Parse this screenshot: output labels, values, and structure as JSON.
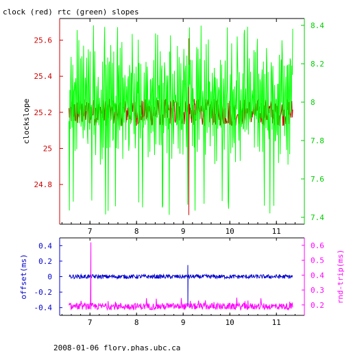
{
  "title": "clock (red) rtc (green) slopes",
  "footer": "2008-01-06 flory.phas.ubc.ca",
  "chart_data": [
    {
      "type": "line",
      "panel": "top",
      "xlim": [
        6.35,
        11.6
      ],
      "x_ticks": [
        "7",
        "8",
        "9",
        "10",
        "11"
      ],
      "y_left": {
        "label": "clockslope",
        "ylim": [
          24.58,
          25.72
        ],
        "ticks": [
          "24.8",
          "25",
          "25.2",
          "25.4",
          "25.6"
        ],
        "color": "#cc0000"
      },
      "y_right": {
        "label": "",
        "ylim": [
          7.37,
          6.44
        ],
        "ticks": [
          "7.4",
          "7.6",
          "7.8",
          "8",
          "8.2",
          "8.4"
        ],
        "color": "#00cc00"
      },
      "series": [
        {
          "name": "clock",
          "color": "#cc0000",
          "axis": "left",
          "x_range": [
            6.55,
            11.35
          ],
          "mean": 25.2,
          "typical_range": [
            25.14,
            25.33
          ],
          "spike": {
            "x": 9.12,
            "min": 24.63,
            "max": 25.61
          }
        },
        {
          "name": "rtc",
          "color": "#00ff00",
          "axis": "right",
          "x_range": [
            6.55,
            11.35
          ],
          "mean": 8.0,
          "typical_range": [
            7.62,
            8.25
          ],
          "extremes": {
            "min": 7.41,
            "max": 8.4
          }
        }
      ]
    },
    {
      "type": "line",
      "panel": "bottom",
      "xlim": [
        6.35,
        11.6
      ],
      "x_ticks": [
        "7",
        "8",
        "9",
        "10",
        "11"
      ],
      "y_left": {
        "label": "offset(ms)",
        "ylim": [
          -0.5,
          0.5
        ],
        "ticks": [
          "-0.4",
          "-0.2",
          "0",
          "0.2",
          "0.4"
        ],
        "color": "#0000cc"
      },
      "y_right": {
        "label": "rnd-trip(ms)",
        "ylim": [
          0.13,
          0.65
        ],
        "ticks": [
          "0.2",
          "0.3",
          "0.4",
          "0.5",
          "0.6"
        ],
        "color": "#ff00ff"
      },
      "series": [
        {
          "name": "offset",
          "color": "#0000cc",
          "axis": "left",
          "x_range": [
            6.55,
            11.35
          ],
          "mean": 0.0,
          "typical_range": [
            -0.03,
            0.03
          ],
          "spike": {
            "x": 9.1,
            "min": -0.39,
            "max": 0.15
          }
        },
        {
          "name": "rnd-trip",
          "color": "#ff00ff",
          "axis": "right",
          "x_range": [
            6.55,
            11.35
          ],
          "mean": 0.19,
          "typical_range": [
            0.17,
            0.22
          ],
          "spike": {
            "x": 7.02,
            "min": 0.17,
            "max": 0.62
          }
        }
      ]
    }
  ]
}
